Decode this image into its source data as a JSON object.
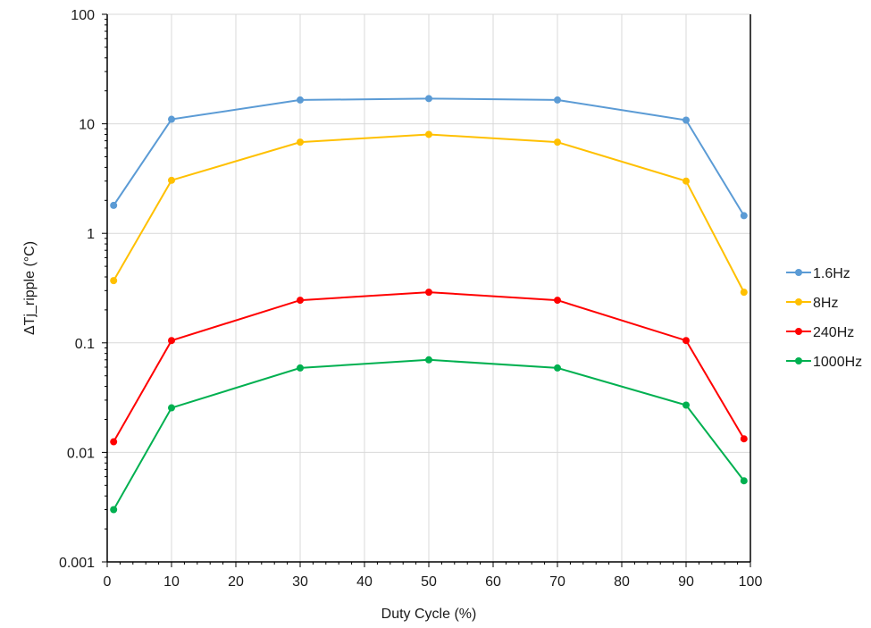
{
  "chart_data": {
    "type": "line",
    "title": "",
    "xlabel": "Duty Cycle (%)",
    "ylabel": "ΔTj_ripple (°C)",
    "xlim": [
      0,
      100
    ],
    "ylim": [
      0.001,
      100
    ],
    "yscale": "log",
    "x_ticks": [
      0,
      10,
      20,
      30,
      40,
      50,
      60,
      70,
      80,
      90,
      100
    ],
    "y_ticks": [
      0.001,
      0.01,
      0.1,
      1,
      10,
      100
    ],
    "x_tick_labels": [
      "0",
      "10",
      "20",
      "30",
      "40",
      "50",
      "60",
      "70",
      "80",
      "90",
      "100"
    ],
    "y_tick_labels": [
      "0.001",
      "0.01",
      "0.1",
      "1",
      "10",
      "100"
    ],
    "grid": true,
    "legend_position": "right",
    "x": [
      1,
      10,
      30,
      50,
      70,
      90,
      99
    ],
    "series": [
      {
        "name": "1.6Hz",
        "color": "#5b9bd5",
        "values": [
          1.8,
          11.0,
          16.5,
          17.0,
          16.5,
          10.8,
          1.45
        ]
      },
      {
        "name": "8Hz",
        "color": "#ffc000",
        "values": [
          0.37,
          3.05,
          6.8,
          8.0,
          6.8,
          3.0,
          0.29
        ]
      },
      {
        "name": "240Hz",
        "color": "#ff0000",
        "values": [
          0.0125,
          0.105,
          0.245,
          0.29,
          0.245,
          0.105,
          0.0133
        ]
      },
      {
        "name": "1000Hz",
        "color": "#00b050",
        "values": [
          0.003,
          0.0255,
          0.059,
          0.07,
          0.059,
          0.027,
          0.0055
        ]
      }
    ]
  }
}
